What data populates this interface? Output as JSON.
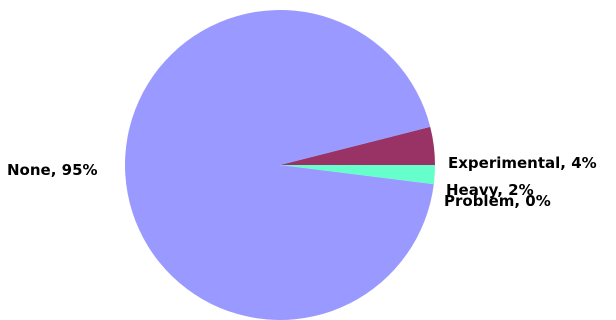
{
  "chart_data": {
    "type": "pie",
    "title": "",
    "legend": "none",
    "slices": [
      {
        "label": "Experimental",
        "value": 4,
        "display": "Experimental, 4%",
        "color": "#993366"
      },
      {
        "label": "Heavy",
        "value": 2,
        "display": "Heavy, 2%",
        "color": "#66ffcc"
      },
      {
        "label": "Problem",
        "value": 0,
        "display": "Problem, 0%",
        "color": "#ffff99"
      },
      {
        "label": "None",
        "value": 95,
        "display": "None, 95%",
        "color": "#9999ff"
      }
    ]
  }
}
